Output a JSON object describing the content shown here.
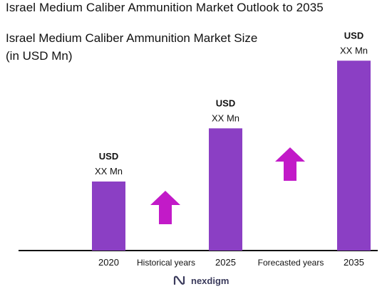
{
  "title": "Israel Medium Caliber Ammunition Market Outlook to 2035",
  "subtitle_line1": "Israel Medium Caliber Ammunition Market Size",
  "subtitle_line2": "(in USD Mn)",
  "chart_data": {
    "type": "bar",
    "categories": [
      "2020",
      "2025",
      "2035"
    ],
    "values": [
      1.0,
      1.77,
      2.75
    ],
    "value_labels": [
      [
        "USD",
        "XX Mn"
      ],
      [
        "USD",
        "XX Mn"
      ],
      [
        "USD",
        "XX Mn"
      ]
    ],
    "period_labels": [
      "Historical years",
      "Forecasted years"
    ],
    "trend_arrows": [
      "up",
      "up"
    ],
    "bar_color": "#8b3fc4",
    "arrow_color": "#c21ac8",
    "grid": false,
    "legend": "none"
  },
  "logo": {
    "text": "nexdigm",
    "icon": "nexdigm-logo-icon",
    "color": "#3b3b5c"
  }
}
